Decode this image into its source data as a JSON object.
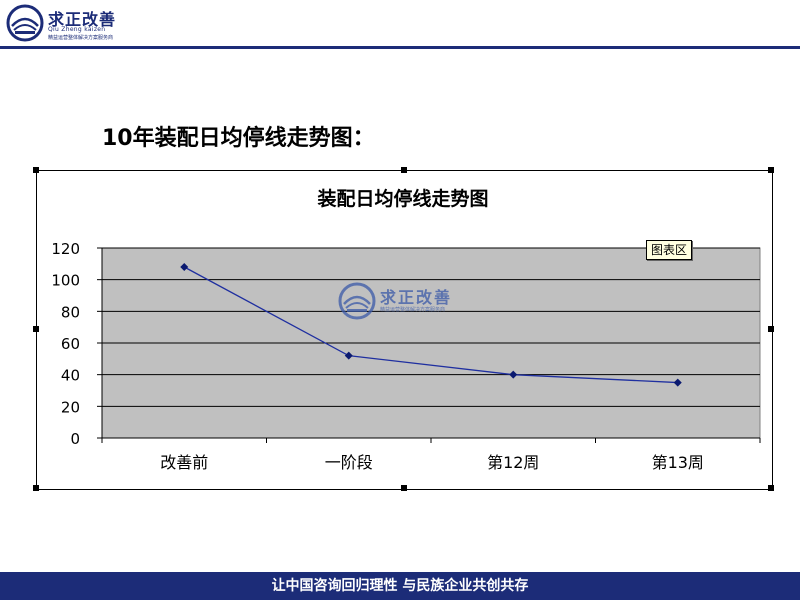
{
  "header": {
    "logo_title": "求正改善",
    "logo_subtitle": "Qiu Zheng kaizen",
    "logo_tagline": "精益运营整体解决方案服务商"
  },
  "page_title": "10年装配日均停线走势图：",
  "footer": {
    "slogan": "让中国咨询回归理性 与民族企业共创共存"
  },
  "watermark": {
    "title": "求正改善",
    "tagline": "精益运营整体解决方案服务商"
  },
  "colors": {
    "brand": "#1c2c78",
    "plot_bg": "#c0c0c0",
    "series": "#1f2fa0"
  },
  "chart_data": {
    "type": "line",
    "title": "装配日均停线走势图",
    "categories": [
      "改善前",
      "一阶段",
      "第12周",
      "第13周"
    ],
    "values": [
      108,
      52,
      40,
      35
    ],
    "ylim": [
      0,
      120
    ],
    "yticks": [
      "0",
      "20",
      "40",
      "60",
      "80",
      "100",
      "120"
    ],
    "xlabel": "",
    "ylabel": "",
    "grid": true,
    "legend_tooltip": "图表区"
  }
}
